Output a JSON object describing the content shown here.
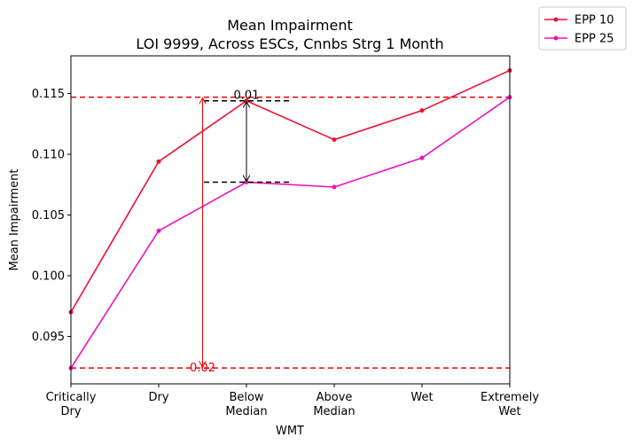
{
  "chart_data": {
    "type": "line",
    "title": "Mean Impairment",
    "subtitle": "LOI 9999, Across ESCs, Cnnbs Strg 1 Month",
    "xlabel": "WMT",
    "ylabel": "Mean Impairment",
    "categories": [
      [
        "Critically",
        "Dry"
      ],
      [
        "Dry"
      ],
      [
        "Below",
        "Median"
      ],
      [
        "Above",
        "Median"
      ],
      [
        "Wet"
      ],
      [
        "Extremely",
        "Wet"
      ]
    ],
    "ylim": [
      0.0911,
      0.1181
    ],
    "yticks": [
      "0.095",
      "0.100",
      "0.105",
      "0.110",
      "0.115"
    ],
    "grid": false,
    "legend_position": "top-right outside",
    "series": [
      {
        "name": "EPP 10",
        "color": "#ee1133",
        "values": [
          0.097,
          0.1094,
          0.1144,
          0.1112,
          0.1136,
          0.1169
        ]
      },
      {
        "name": "EPP 25",
        "color": "#ee11bb",
        "values": [
          0.0924,
          0.1037,
          0.1077,
          0.1073,
          0.1097,
          0.1147
        ]
      }
    ],
    "reference_lines": [
      {
        "y": 0.1147,
        "color": "#ee0000",
        "style": "dashed"
      },
      {
        "y": 0.0924,
        "color": "#ee0000",
        "style": "dashed"
      }
    ],
    "annotations": [
      {
        "label": "0.01",
        "x_index": 2,
        "y_top": 0.1144,
        "y_bottom": 0.1077,
        "color": "#000000"
      },
      {
        "label": "0.02",
        "x_index": 1.5,
        "y_top": 0.1147,
        "y_bottom": 0.0924,
        "color": "#ee0000"
      }
    ]
  }
}
